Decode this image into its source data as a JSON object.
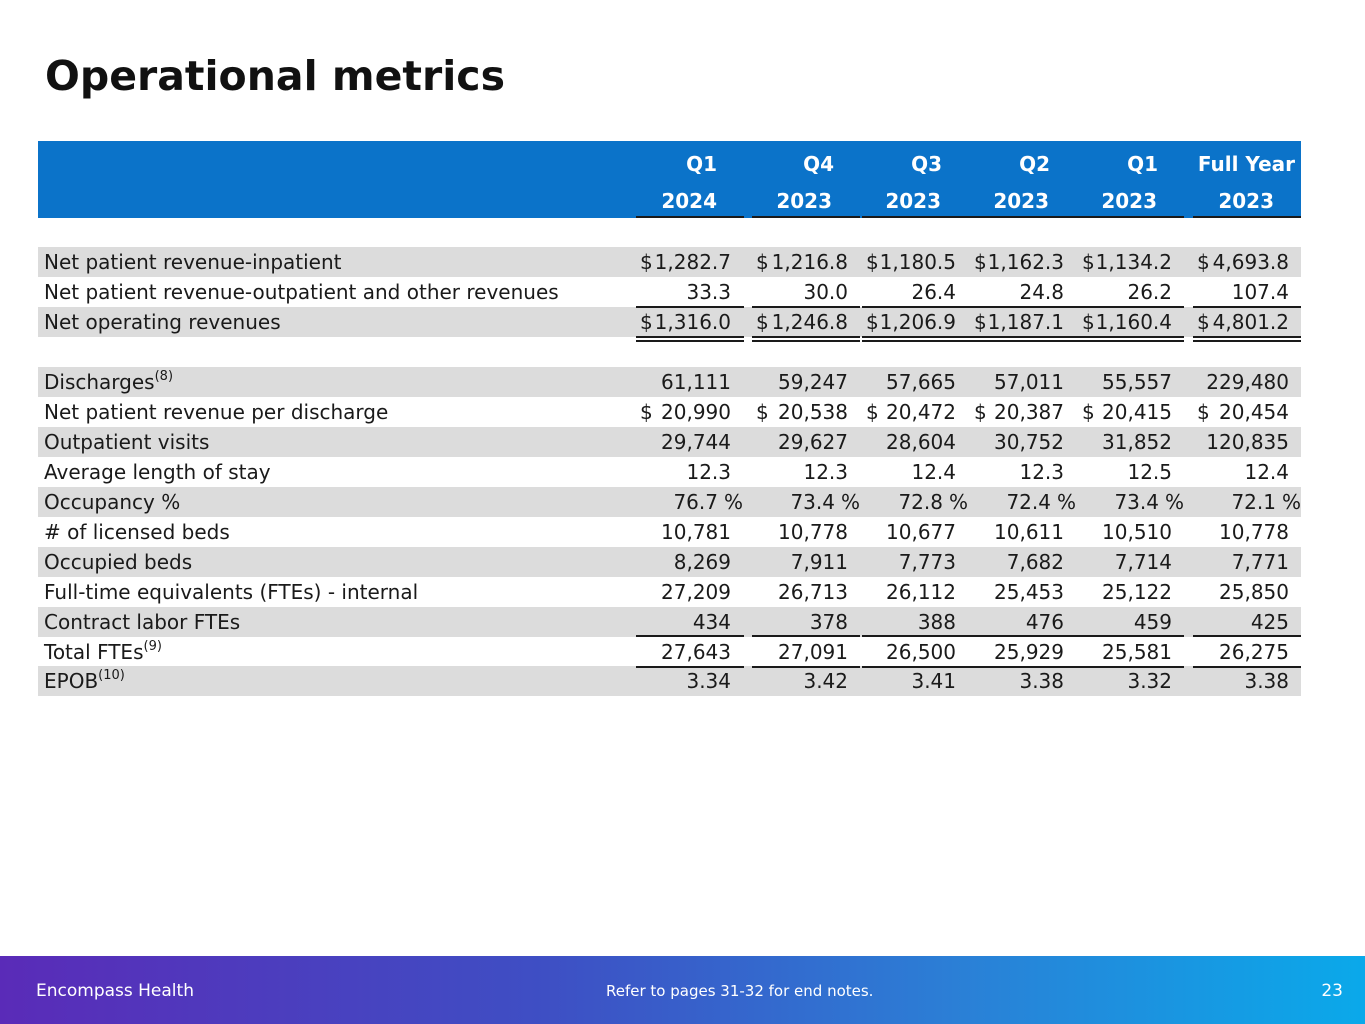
{
  "title": "Operational metrics",
  "columns": [
    {
      "line1": "Q1",
      "line2": "2024"
    },
    {
      "line1": "Q4",
      "line2": "2023"
    },
    {
      "line1": "Q3",
      "line2": "2023"
    },
    {
      "line1": "Q2",
      "line2": "2023"
    },
    {
      "line1": "Q1",
      "line2": "2023"
    },
    {
      "line1": "Full Year",
      "line2": "2023"
    }
  ],
  "rows": [
    {
      "label": "Net patient revenue-inpatient",
      "sup": "",
      "dollar": true,
      "values": [
        "1,282.7",
        "1,216.8",
        "1,180.5",
        "1,162.3",
        "1,134.2",
        "4,693.8"
      ]
    },
    {
      "label": "Net patient revenue-outpatient and other revenues",
      "sup": "",
      "dollar": false,
      "values": [
        "33.3",
        "30.0",
        "26.4",
        "24.8",
        "26.2",
        "107.4"
      ]
    },
    {
      "label": "Net operating revenues",
      "sup": "",
      "dollar": true,
      "values": [
        "1,316.0",
        "1,246.8",
        "1,206.9",
        "1,187.1",
        "1,160.4",
        "4,801.2"
      ]
    },
    {
      "label": "Discharges",
      "sup": "(8)",
      "dollar": false,
      "values": [
        "61,111",
        "59,247",
        "57,665",
        "57,011",
        "55,557",
        "229,480"
      ]
    },
    {
      "label": "Net patient revenue per discharge",
      "sup": "",
      "dollar": true,
      "values": [
        "20,990",
        "20,538",
        "20,472",
        "20,387",
        "20,415",
        "20,454"
      ]
    },
    {
      "label": "Outpatient visits",
      "sup": "",
      "dollar": false,
      "values": [
        "29,744",
        "29,627",
        "28,604",
        "30,752",
        "31,852",
        "120,835"
      ]
    },
    {
      "label": "Average length of stay",
      "sup": "",
      "dollar": false,
      "values": [
        "12.3",
        "12.3",
        "12.4",
        "12.3",
        "12.5",
        "12.4"
      ]
    },
    {
      "label": "Occupancy %",
      "sup": "",
      "dollar": false,
      "pct": true,
      "values": [
        "76.7",
        "73.4",
        "72.8",
        "72.4",
        "73.4",
        "72.1"
      ]
    },
    {
      "label": "# of licensed beds",
      "sup": "",
      "dollar": false,
      "values": [
        "10,781",
        "10,778",
        "10,677",
        "10,611",
        "10,510",
        "10,778"
      ]
    },
    {
      "label": "Occupied beds",
      "sup": "",
      "dollar": false,
      "values": [
        "8,269",
        "7,911",
        "7,773",
        "7,682",
        "7,714",
        "7,771"
      ]
    },
    {
      "label": "Full-time equivalents (FTEs) - internal",
      "sup": "",
      "dollar": false,
      "values": [
        "27,209",
        "26,713",
        "26,112",
        "25,453",
        "25,122",
        "25,850"
      ]
    },
    {
      "label": "Contract labor FTEs",
      "sup": "",
      "dollar": false,
      "values": [
        "434",
        "378",
        "388",
        "476",
        "459",
        "425"
      ]
    },
    {
      "label": "Total FTEs",
      "sup": "(9)",
      "dollar": false,
      "values": [
        "27,643",
        "27,091",
        "26,500",
        "25,929",
        "25,581",
        "26,275"
      ]
    },
    {
      "label": "EPOB",
      "sup": "(10)",
      "dollar": false,
      "values": [
        "3.34",
        "3.42",
        "3.41",
        "3.38",
        "3.32",
        "3.38"
      ]
    }
  ],
  "symbols": {
    "currency": "$",
    "percent": "%"
  },
  "footer": {
    "company": "Encompass Health",
    "note": "Refer to pages 31-32 for end notes.",
    "page": "23"
  },
  "colors": {
    "header": "#0b73c9",
    "shade": "#dcdcdc"
  }
}
